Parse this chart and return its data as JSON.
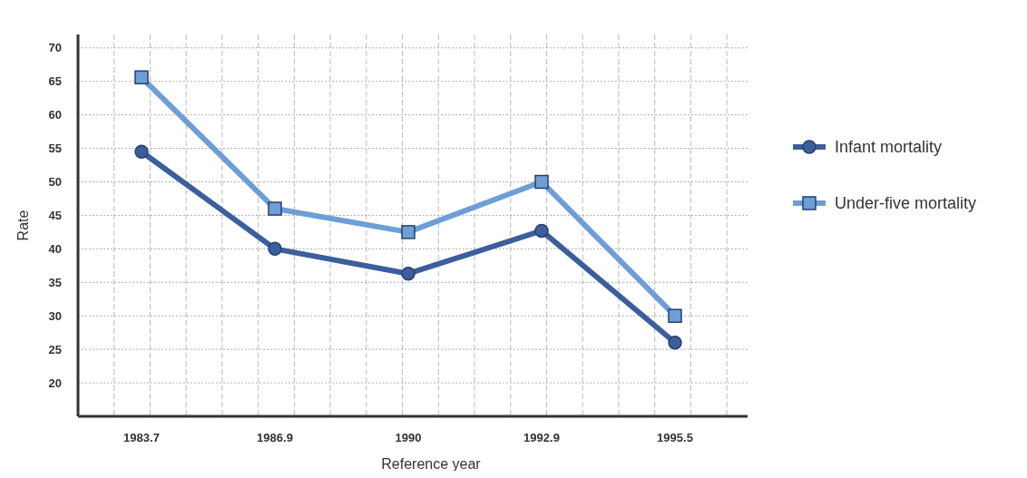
{
  "chart_data": {
    "type": "line",
    "xlabel": "Reference year",
    "ylabel": "Rate",
    "categories": [
      "1983.7",
      "1986.9",
      "1990",
      "1992.9",
      "1995.5"
    ],
    "series": [
      {
        "name": "Infant mortality",
        "color": "#3b5f9c",
        "marker": "circle",
        "values": [
          54.5,
          40,
          36.3,
          42.7,
          26
        ]
      },
      {
        "name": "Under-five mortality",
        "color": "#6d9fd6",
        "marker": "square",
        "values": [
          65.6,
          46,
          42.5,
          50,
          30
        ]
      }
    ],
    "ylim": [
      15,
      72
    ],
    "yticks": [
      20,
      25,
      30,
      35,
      40,
      45,
      50,
      55,
      60,
      65,
      70
    ],
    "grid": true,
    "legend": "right"
  }
}
